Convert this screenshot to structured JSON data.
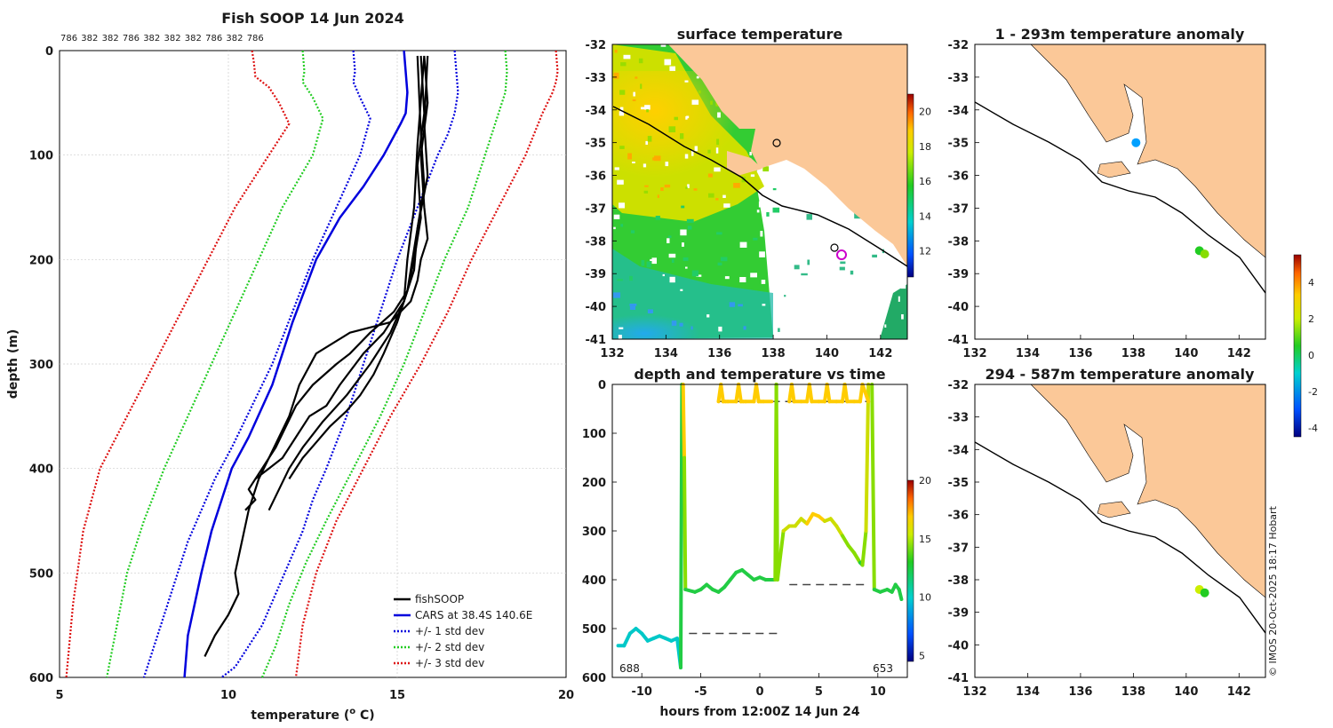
{
  "chart_data": [
    {
      "type": "line",
      "title": "Fish SOOP 14 Jun 2024",
      "xlabel": "temperature (",
      "xlabel_sup": "o",
      "xlabel_end": " C)",
      "ylabel": "depth (m)",
      "xlim": [
        5,
        20
      ],
      "ylim": [
        600,
        0
      ],
      "xticks": [
        "5",
        "10",
        "15",
        "20"
      ],
      "yticks": [
        "0",
        "100",
        "200",
        "300",
        "400",
        "500",
        "600"
      ],
      "top_labels": [
        "786",
        "382",
        "382",
        "786",
        "382",
        "382",
        "382",
        "786",
        "382",
        "786"
      ],
      "legend": [
        "fishSOOP",
        "CARS at 38.4S 140.6E",
        "+/- 1 std dev",
        "+/- 2 std dev",
        "+/- 3 std dev"
      ],
      "colors": {
        "fishsoop": "#000000",
        "cars": "#0000dd",
        "std1": "#0000dd",
        "std2": "#22cc22",
        "std3": "#dd1111"
      },
      "series": [
        {
          "name": "CARS at 38.4S 140.6E",
          "x": [
            15.2,
            15.25,
            15.3,
            15.25,
            15.1,
            14.6,
            14.0,
            13.3,
            12.6,
            11.9,
            11.3,
            10.6,
            10.1,
            9.8,
            9.5,
            9.2,
            9.0,
            8.8,
            8.7
          ],
          "y": [
            0,
            20,
            40,
            60,
            70,
            100,
            130,
            160,
            200,
            260,
            320,
            370,
            400,
            430,
            460,
            500,
            530,
            560,
            600
          ]
        },
        {
          "name": "+1 std dev",
          "x": [
            16.7,
            16.75,
            16.8,
            16.7,
            16.5,
            16.2,
            15.6,
            15.0,
            14.5,
            14.0,
            13.5,
            12.9,
            12.5,
            12.2,
            11.8,
            11.4,
            11.0,
            10.6,
            10.2,
            9.8
          ],
          "y": [
            0,
            20,
            40,
            60,
            80,
            100,
            150,
            200,
            250,
            300,
            350,
            400,
            430,
            460,
            490,
            520,
            550,
            570,
            590,
            600
          ]
        },
        {
          "name": "-1 std dev",
          "x": [
            13.7,
            13.75,
            13.7,
            13.9,
            14.2,
            13.9,
            13.2,
            12.5,
            11.9,
            11.3,
            10.7,
            10.1,
            9.6,
            9.2,
            8.8,
            8.4,
            8.0,
            7.7,
            7.5
          ],
          "y": [
            0,
            20,
            30,
            45,
            65,
            100,
            150,
            200,
            250,
            300,
            340,
            380,
            410,
            440,
            470,
            510,
            550,
            580,
            600
          ]
        },
        {
          "name": "+2 std dev",
          "x": [
            18.2,
            18.25,
            18.2,
            18.0,
            17.6,
            17.1,
            16.4,
            15.8,
            15.2,
            14.5,
            13.7,
            12.9,
            12.3,
            11.8,
            11.4,
            11.0
          ],
          "y": [
            0,
            20,
            40,
            60,
            100,
            150,
            200,
            250,
            300,
            350,
            400,
            450,
            490,
            530,
            570,
            600
          ]
        },
        {
          "name": "-2 std dev",
          "x": [
            12.2,
            12.25,
            12.2,
            12.5,
            12.8,
            12.5,
            11.6,
            10.9,
            10.2,
            9.5,
            8.8,
            8.1,
            7.5,
            7.0,
            6.7,
            6.4
          ],
          "y": [
            0,
            20,
            30,
            45,
            65,
            100,
            150,
            200,
            250,
            300,
            350,
            400,
            450,
            500,
            550,
            600
          ]
        },
        {
          "name": "+3 std dev",
          "x": [
            19.7,
            19.75,
            19.7,
            19.6,
            19.3,
            18.8,
            18.0,
            17.2,
            16.5,
            15.7,
            14.8,
            14.0,
            13.2,
            12.6,
            12.2,
            12.0
          ],
          "y": [
            0,
            20,
            30,
            40,
            60,
            100,
            150,
            200,
            250,
            300,
            350,
            400,
            450,
            500,
            550,
            600
          ]
        },
        {
          "name": "-3 std dev",
          "x": [
            10.7,
            10.75,
            10.8,
            11.2,
            11.5,
            11.8,
            11.2,
            10.2,
            9.4,
            8.6,
            7.8,
            7.0,
            6.2,
            5.7,
            5.4,
            5.2
          ],
          "y": [
            0,
            10,
            25,
            35,
            50,
            70,
            100,
            150,
            200,
            250,
            300,
            350,
            400,
            460,
            530,
            600
          ]
        }
      ],
      "casts": [
        {
          "x": [
            15.8,
            15.9,
            15.7,
            15.8,
            15.9,
            15.7,
            15.6,
            15.4,
            14.8,
            13.6,
            12.6,
            12.1,
            11.8,
            11.5,
            11.2,
            10.9,
            10.6,
            10.4,
            10.2,
            10.3,
            10.0,
            9.6,
            9.3
          ],
          "y": [
            5,
            50,
            100,
            150,
            180,
            200,
            220,
            240,
            260,
            270,
            290,
            320,
            350,
            370,
            390,
            410,
            440,
            470,
            500,
            520,
            540,
            560,
            580
          ]
        },
        {
          "x": [
            15.7,
            15.8,
            15.6,
            15.7,
            15.5,
            15.3,
            14.9,
            14.2,
            13.6,
            13.2,
            12.5,
            12.0,
            11.7,
            11.4,
            11.0,
            10.6,
            10.8,
            10.5
          ],
          "y": [
            5,
            60,
            110,
            160,
            200,
            230,
            250,
            270,
            290,
            300,
            320,
            340,
            360,
            380,
            400,
            420,
            430,
            440
          ]
        },
        {
          "x": [
            15.9,
            15.8,
            15.9,
            15.6,
            15.5,
            15.2,
            14.6,
            14.0,
            13.3,
            12.9,
            12.4,
            12.0,
            11.6,
            11.2,
            10.8
          ],
          "y": [
            5,
            70,
            120,
            170,
            210,
            240,
            270,
            290,
            320,
            340,
            350,
            370,
            390,
            400,
            410
          ]
        },
        {
          "x": [
            15.6,
            15.7,
            15.8,
            15.5,
            15.3,
            15.0,
            14.6,
            14.3,
            13.9,
            13.5,
            13.0,
            12.6,
            12.2,
            11.8
          ],
          "y": [
            5,
            80,
            130,
            190,
            230,
            260,
            290,
            310,
            330,
            345,
            360,
            375,
            390,
            410
          ]
        },
        {
          "x": [
            15.8,
            15.6,
            15.5,
            15.3,
            15.2,
            14.8,
            14.2,
            13.5,
            12.8,
            12.2,
            11.8,
            11.5,
            11.2
          ],
          "y": [
            5,
            90,
            150,
            200,
            240,
            270,
            300,
            330,
            355,
            380,
            400,
            420,
            440
          ]
        }
      ]
    },
    {
      "type": "heatmap",
      "title": "surface temperature",
      "xlim": [
        132,
        143
      ],
      "ylim": [
        -41,
        -32
      ],
      "xticks": [
        "132",
        "134",
        "136",
        "138",
        "140",
        "142"
      ],
      "yticks": [
        "-32",
        "-33",
        "-34",
        "-35",
        "-36",
        "-37",
        "-38",
        "-39",
        "-40",
        "-41"
      ],
      "colorbar_ticks": [
        "12",
        "14",
        "16",
        "18",
        "20"
      ]
    },
    {
      "type": "scatter",
      "title": "1 - 293m temperature anomaly",
      "xlim": [
        132,
        143
      ],
      "ylim": [
        -41,
        -32
      ],
      "xticks": [
        "132",
        "134",
        "136",
        "138",
        "140",
        "142"
      ],
      "yticks": [
        "-32",
        "-33",
        "-34",
        "-35",
        "-36",
        "-37",
        "-38",
        "-39",
        "-40",
        "-41"
      ],
      "points": [
        {
          "lon": 138.1,
          "lat": -35.0,
          "anomaly": -1.5
        },
        {
          "lon": 140.5,
          "lat": -38.3,
          "anomaly": 0.4
        },
        {
          "lon": 140.7,
          "lat": -38.4,
          "anomaly": 0.6
        }
      ],
      "colorbar_ticks": [
        "-4",
        "-2",
        "0",
        "2",
        "4"
      ]
    },
    {
      "type": "scatter",
      "title": "294 - 587m temperature anomaly",
      "xlim": [
        132,
        143
      ],
      "ylim": [
        -41,
        -32
      ],
      "xticks": [
        "132",
        "134",
        "136",
        "138",
        "140",
        "142"
      ],
      "yticks": [
        "-32",
        "-33",
        "-34",
        "-35",
        "-36",
        "-37",
        "-38",
        "-39",
        "-40",
        "-41"
      ],
      "points": [
        {
          "lon": 140.5,
          "lat": -38.3,
          "anomaly": 1.5
        },
        {
          "lon": 140.7,
          "lat": -38.4,
          "anomaly": 0.2
        }
      ]
    },
    {
      "type": "line",
      "title": "depth and temperature vs time",
      "xlabel": "hours from 12:00Z 14 Jun 24",
      "xlim": [
        -12.5,
        12.5
      ],
      "ylim": [
        600,
        0
      ],
      "xticks": [
        "-10",
        "-5",
        "0",
        "5",
        "10"
      ],
      "yticks": [
        "0",
        "100",
        "200",
        "300",
        "400",
        "500",
        "600"
      ],
      "corner_left": "688",
      "corner_right": "653",
      "colorbar_ticks": [
        "5",
        "10",
        "15",
        "20"
      ],
      "dashed": [
        {
          "x": [
            -3.5,
            9.2
          ],
          "y": [
            35,
            35
          ]
        },
        {
          "x": [
            2.5,
            9.0
          ],
          "y": [
            410,
            410
          ]
        },
        {
          "x": [
            -6.0,
            1.5
          ],
          "y": [
            510,
            510
          ]
        }
      ],
      "segments": [
        {
          "x": [
            -12.0,
            -11.5,
            -11.0,
            -10.5,
            -10.0,
            -9.5,
            -9.0,
            -8.5,
            -8.0,
            -7.5,
            -7.0,
            -6.7
          ],
          "y": [
            535,
            535,
            510,
            500,
            510,
            525,
            520,
            515,
            520,
            525,
            520,
            580
          ],
          "t": [
            10.5,
            10.5,
            10.8,
            10.8,
            10.6,
            10.5,
            10.5,
            10.6,
            10.5,
            10.5,
            10.5,
            10.0
          ]
        },
        {
          "x": [
            -6.7,
            -6.6
          ],
          "y": [
            580,
            0
          ],
          "t": [
            10.0,
            15.5
          ]
        },
        {
          "x": [
            -6.5,
            -6.4,
            -6.3
          ],
          "y": [
            0,
            150,
            420
          ],
          "t": [
            15.5,
            15.0,
            11.8
          ]
        },
        {
          "x": [
            -6.3,
            -5.5,
            -5.0,
            -4.5,
            -4.0,
            -3.5,
            -3.0,
            -2.5,
            -2.0,
            -1.5,
            -1.0,
            -0.5,
            0.0,
            0.5,
            1.0,
            1.3
          ],
          "y": [
            420,
            425,
            420,
            410,
            420,
            425,
            415,
            400,
            385,
            380,
            390,
            400,
            395,
            400,
            400,
            400
          ],
          "t": [
            11.8,
            11.8,
            11.8,
            12.0,
            11.8,
            11.8,
            12.0,
            12.2,
            12.4,
            12.5,
            12.3,
            12.2,
            12.2,
            12.2,
            12.2,
            12.2
          ]
        },
        {
          "x": [
            1.3,
            1.4,
            1.5
          ],
          "y": [
            400,
            0,
            400
          ],
          "t": [
            12.2,
            15.5,
            12.2
          ]
        },
        {
          "x": [
            1.5,
            2.0,
            2.5
          ],
          "y": [
            400,
            300,
            290
          ],
          "t": [
            12.2,
            14.5,
            14.8
          ]
        },
        {
          "x": [
            2.5,
            3.0,
            3.5,
            4.0,
            4.5,
            5.0,
            5.5,
            6.0,
            6.5,
            7.0,
            7.5,
            8.0,
            8.5,
            8.7
          ],
          "y": [
            290,
            290,
            275,
            285,
            265,
            270,
            280,
            275,
            290,
            310,
            330,
            345,
            365,
            370
          ],
          "t": [
            14.8,
            14.8,
            15.0,
            14.9,
            15.2,
            15.1,
            15.0,
            15.0,
            14.8,
            14.2,
            13.8,
            13.2,
            12.6,
            12.5
          ]
        },
        {
          "x": [
            8.7,
            9.0,
            9.2
          ],
          "y": [
            370,
            300,
            0
          ],
          "t": [
            12.5,
            14.5,
            15.5
          ]
        },
        {
          "x": [
            9.5,
            9.7
          ],
          "y": [
            0,
            420
          ],
          "t": [
            15.5,
            12.0
          ]
        },
        {
          "x": [
            9.7,
            10.2,
            10.8,
            11.2,
            11.5,
            11.8,
            12.0
          ],
          "y": [
            420,
            425,
            420,
            425,
            410,
            420,
            440
          ],
          "t": [
            12.0,
            12.0,
            12.0,
            12.0,
            12.1,
            12.0,
            11.9
          ]
        },
        {
          "x": [
            -3.5,
            -3.3,
            -3.1,
            -2.9,
            -2.7,
            -2.0,
            -1.8,
            -1.6,
            -1.4,
            -1.2,
            -0.5,
            -0.3,
            -0.1,
            0.1,
            0.3,
            1.0
          ],
          "y": [
            35,
            0,
            35,
            35,
            35,
            35,
            0,
            35,
            35,
            35,
            35,
            0,
            35,
            35,
            35,
            35
          ],
          "t": [
            15.5,
            15.8,
            15.5,
            15.5,
            15.5,
            15.5,
            15.8,
            15.5,
            15.5,
            15.5,
            15.5,
            15.8,
            15.5,
            15.5,
            15.5,
            15.5
          ]
        },
        {
          "x": [
            2.5,
            2.7,
            2.9,
            3.5,
            4.0,
            4.2,
            4.4,
            5.0,
            5.5,
            5.7,
            5.9,
            6.5,
            7.0,
            7.2,
            7.4,
            8.0,
            8.5,
            8.7,
            9.2
          ],
          "y": [
            35,
            0,
            35,
            35,
            35,
            0,
            35,
            35,
            35,
            0,
            35,
            35,
            35,
            0,
            35,
            35,
            35,
            0,
            35
          ],
          "t": [
            15.5,
            15.8,
            15.5,
            15.5,
            15.5,
            15.8,
            15.5,
            15.5,
            15.5,
            15.8,
            15.5,
            15.5,
            15.5,
            15.8,
            15.5,
            15.5,
            15.5,
            15.8,
            15.5
          ]
        }
      ]
    }
  ],
  "credit": "© IMOS 20-Oct-2025 18:17 Hobart"
}
